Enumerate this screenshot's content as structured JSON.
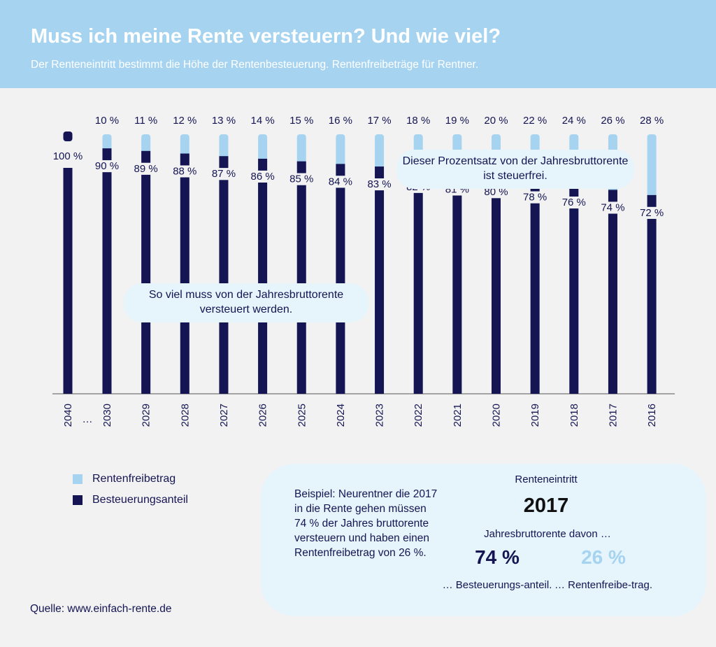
{
  "header": {
    "title": "Muss ich meine Rente versteuern? Und wie viel?",
    "subtitle": "Der Renteneintritt bestimmt die Höhe der Rentenbesteuerung. Rentenfreibeträge für Rentner."
  },
  "colors": {
    "header_bg": "#a6d4f0",
    "freibetrag": "#a6d4f0",
    "besteuerung": "#141552",
    "callout_bg": "#e6f4fc",
    "page_bg": "#f2f2f2"
  },
  "chart_data": {
    "type": "bar",
    "stacked": true,
    "categories": [
      "2040",
      "2030",
      "2029",
      "2028",
      "2027",
      "2026",
      "2025",
      "2024",
      "2023",
      "2022",
      "2021",
      "2020",
      "2019",
      "2018",
      "2017",
      "2016"
    ],
    "axis_gap_label": "…",
    "series": [
      {
        "name": "Besteuerungsanteil",
        "values": [
          100,
          90,
          89,
          88,
          87,
          86,
          85,
          84,
          83,
          82,
          81,
          80,
          78,
          76,
          74,
          72
        ]
      },
      {
        "name": "Rentenfreibetrag",
        "values": [
          0,
          10,
          11,
          12,
          13,
          14,
          15,
          16,
          17,
          18,
          19,
          20,
          22,
          24,
          26,
          28
        ]
      }
    ],
    "ylim": [
      0,
      100
    ],
    "unit": " %",
    "grid": false
  },
  "callouts": {
    "freibetrag": "Dieser Prozentsatz von der Jahresbruttorente ist steuerfrei.",
    "steuer": "So viel muss von der Jahresbruttorente versteuert werden."
  },
  "legend": {
    "freibetrag": "Rentenfreibetrag",
    "besteuerung": "Besteuerungsanteil"
  },
  "example": {
    "text": "Beispiel: Neurentner die 2017 in die Rente gehen müssen 74 % der Jahres bruttorente versteuern und haben einen Rentenfreibetrag von 26 %.",
    "entry_label": "Renteneintritt",
    "entry_year": "2017",
    "davon": "Jahresbruttorente davon …",
    "tax_pct": "74 %",
    "free_pct": "26 %",
    "tax_caption": "… Besteuerungs-anteil.",
    "free_caption": "… Rentenfreibe-trag."
  },
  "source": "Quelle: www.einfach-rente.de"
}
